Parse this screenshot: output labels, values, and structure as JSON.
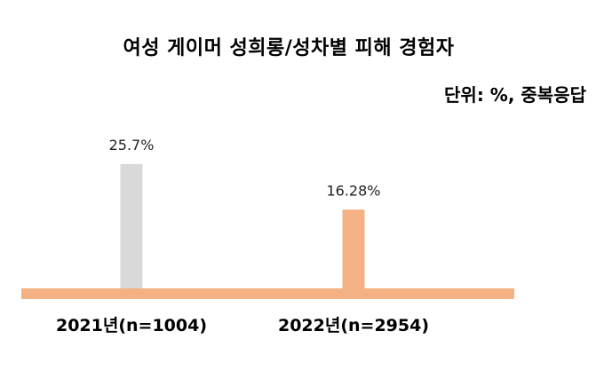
{
  "chart_data": {
    "type": "bar",
    "title": "여성 게이머 성희롱/성차별 피해 경험자",
    "unit_note": "단위: %, 중복응답",
    "categories": [
      "2021년(n=1004)",
      "2022년(n=2954)"
    ],
    "values": [
      25.7,
      16.28
    ],
    "data_labels": [
      "25.7%",
      "16.28%"
    ],
    "bar_colors": [
      "#d9d9d9",
      "#f4b183"
    ],
    "baseline_color": "#f4b183",
    "ylim": [
      0,
      30
    ],
    "grid": false,
    "legend": "none"
  }
}
